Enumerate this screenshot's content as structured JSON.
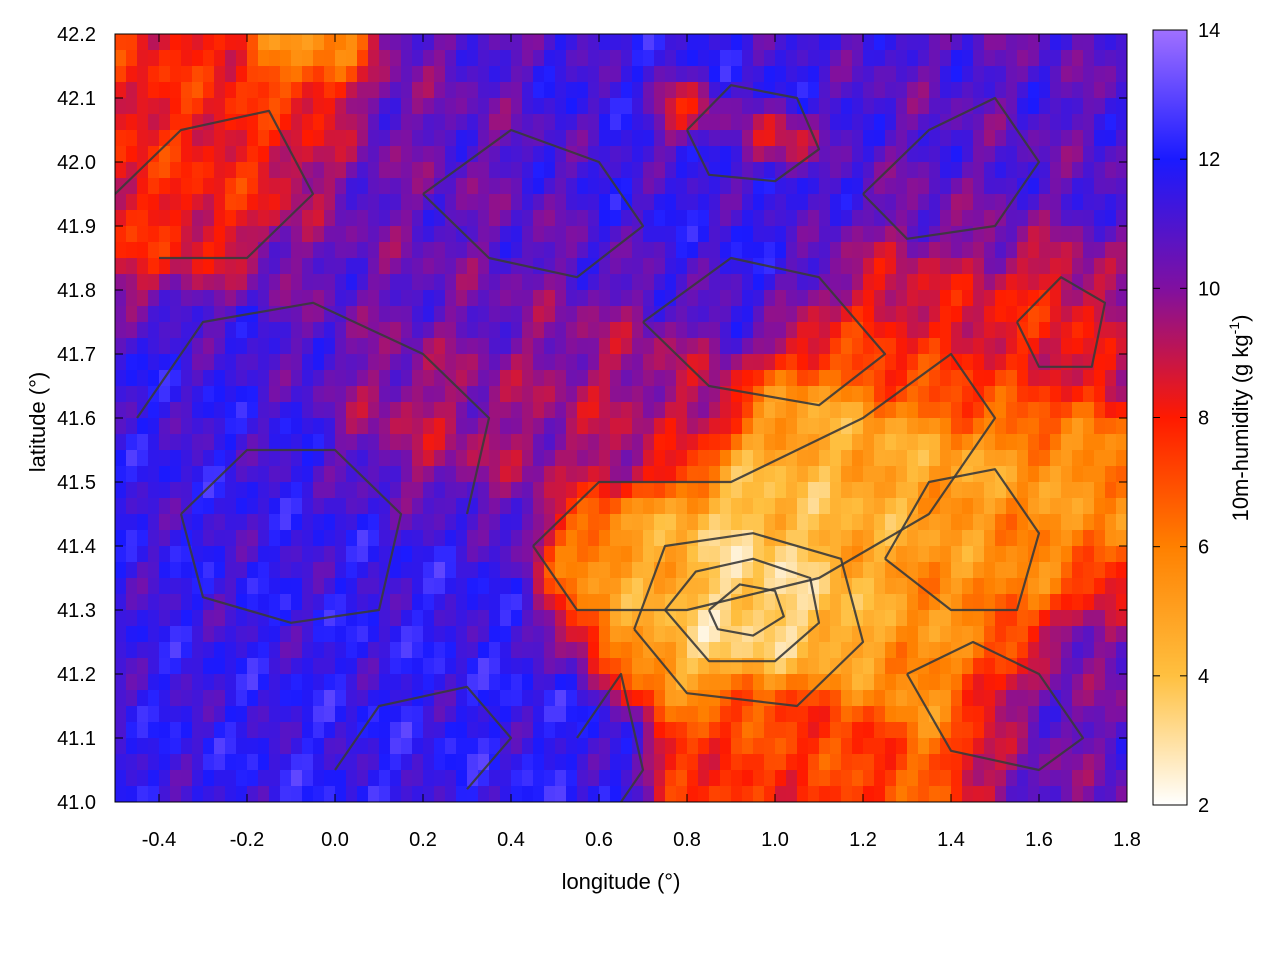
{
  "chart_data": {
    "type": "heatmap",
    "xlabel": "longitude (°)",
    "ylabel": "latitude (°)",
    "colorbar_label_main": "10m-humidity (g kg",
    "colorbar_label_sup": "-1",
    "colorbar_label_end": ")",
    "xlim": [
      -0.5,
      1.8
    ],
    "ylim": [
      41.0,
      42.2
    ],
    "x_ticks": [
      {
        "value": -0.4,
        "label": "-0.4"
      },
      {
        "value": -0.2,
        "label": "-0.2"
      },
      {
        "value": 0.0,
        "label": "0.0"
      },
      {
        "value": 0.2,
        "label": "0.2"
      },
      {
        "value": 0.4,
        "label": "0.4"
      },
      {
        "value": 0.6,
        "label": "0.6"
      },
      {
        "value": 0.8,
        "label": "0.8"
      },
      {
        "value": 1.0,
        "label": "1.0"
      },
      {
        "value": 1.2,
        "label": "1.2"
      },
      {
        "value": 1.4,
        "label": "1.4"
      },
      {
        "value": 1.6,
        "label": "1.6"
      },
      {
        "value": 1.8,
        "label": "1.8"
      }
    ],
    "y_ticks": [
      {
        "value": 41.0,
        "label": "41.0"
      },
      {
        "value": 41.1,
        "label": "41.1"
      },
      {
        "value": 41.2,
        "label": "41.2"
      },
      {
        "value": 41.3,
        "label": "41.3"
      },
      {
        "value": 41.4,
        "label": "41.4"
      },
      {
        "value": 41.5,
        "label": "41.5"
      },
      {
        "value": 41.6,
        "label": "41.6"
      },
      {
        "value": 41.7,
        "label": "41.7"
      },
      {
        "value": 41.8,
        "label": "41.8"
      },
      {
        "value": 41.9,
        "label": "41.9"
      },
      {
        "value": 42.0,
        "label": "42.0"
      },
      {
        "value": 42.1,
        "label": "42.1"
      },
      {
        "value": 42.2,
        "label": "42.2"
      }
    ],
    "colorbar": {
      "range": [
        2,
        14
      ],
      "ticks": [
        {
          "value": 2,
          "label": "2"
        },
        {
          "value": 4,
          "label": "4"
        },
        {
          "value": 6,
          "label": "6"
        },
        {
          "value": 8,
          "label": "8"
        },
        {
          "value": 10,
          "label": "10"
        },
        {
          "value": 12,
          "label": "12"
        },
        {
          "value": 14,
          "label": "14"
        }
      ],
      "colormap": [
        {
          "value": 2,
          "color": "#ffffff"
        },
        {
          "value": 4,
          "color": "#ffc040"
        },
        {
          "value": 6,
          "color": "#ff8000"
        },
        {
          "value": 8,
          "color": "#ff1a00"
        },
        {
          "value": 10,
          "color": "#8010a0"
        },
        {
          "value": 12,
          "color": "#1a1aff"
        },
        {
          "value": 14,
          "color": "#a070ff"
        }
      ]
    },
    "grid": false,
    "contour_color": "#3a3a3a",
    "field_description": "dry (low humidity, 3-7 g/kg) region centered near lon 0.9-1.4, lat 41.25-41.55; moist (10-13 g/kg) west and south-west; high humidity band near lat 42.0-42.1 and lon 0.6-1.1 with dry patches",
    "features": [
      {
        "lon": 0.95,
        "lat": 41.32,
        "value": 3.0,
        "spread": 0.18
      },
      {
        "lon": 1.25,
        "lat": 41.45,
        "value": 4.5,
        "spread": 0.25
      },
      {
        "lon": 0.7,
        "lat": 41.35,
        "value": 5.0,
        "spread": 0.15
      },
      {
        "lon": 1.45,
        "lat": 41.35,
        "value": 6.0,
        "spread": 0.2
      },
      {
        "lon": -0.2,
        "lat": 41.4,
        "value": 11.5,
        "spread": 0.35
      },
      {
        "lon": 0.15,
        "lat": 41.15,
        "value": 11.8,
        "spread": 0.3
      },
      {
        "lon": 0.3,
        "lat": 41.8,
        "value": 10.5,
        "spread": 0.3
      },
      {
        "lon": 0.8,
        "lat": 41.95,
        "value": 11.5,
        "spread": 0.25
      },
      {
        "lon": 1.5,
        "lat": 41.95,
        "value": 10.8,
        "spread": 0.25
      },
      {
        "lon": -0.35,
        "lat": 42.05,
        "value": 8.0,
        "spread": 0.22
      },
      {
        "lon": 1.4,
        "lat": 41.75,
        "value": 8.0,
        "spread": 0.2
      },
      {
        "lon": 1.6,
        "lat": 41.8,
        "value": 7.5,
        "spread": 0.1
      },
      {
        "lon": 0.8,
        "lat": 42.07,
        "value": 7.0,
        "spread": 0.06
      },
      {
        "lon": 1.0,
        "lat": 42.03,
        "value": 7.5,
        "spread": 0.06
      },
      {
        "lon": -0.1,
        "lat": 42.18,
        "value": 5.5,
        "spread": 0.08
      },
      {
        "lon": 1.0,
        "lat": 41.1,
        "value": 7.5,
        "spread": 0.15
      },
      {
        "lon": 0.6,
        "lat": 41.65,
        "value": 9.2,
        "spread": 0.2
      },
      {
        "lon": 0.2,
        "lat": 41.6,
        "value": 8.8,
        "spread": 0.15
      },
      {
        "lon": 1.7,
        "lat": 41.2,
        "value": 10.5,
        "spread": 0.15
      }
    ]
  }
}
